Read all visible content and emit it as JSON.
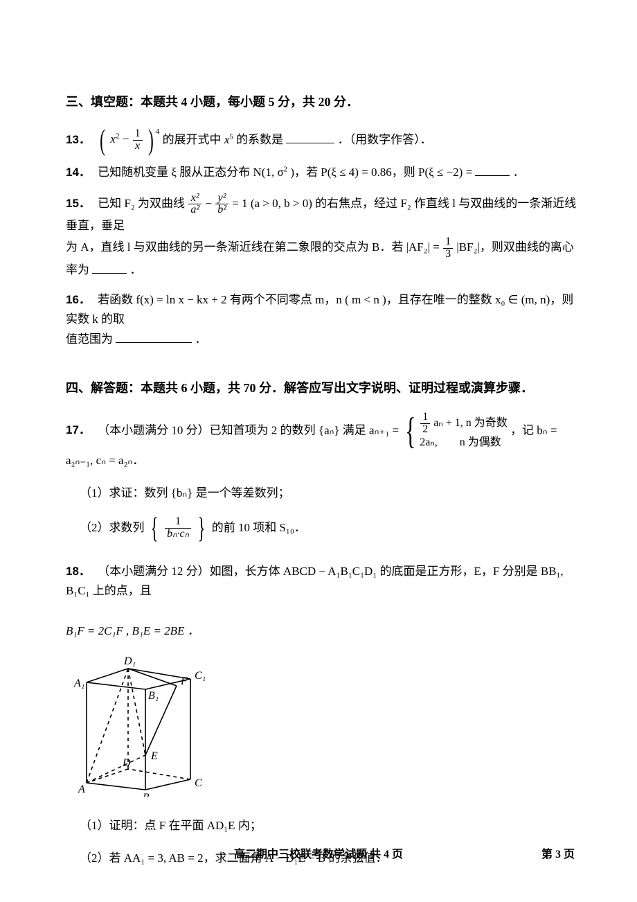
{
  "section3": {
    "title": "三、填空题：本题共 4 小题，每小题 5 分，共 20 分．",
    "q13": {
      "num": "13．",
      "pre": "",
      "exp_sup": "4",
      "mid1": " 的展开式中 ",
      "x5": "x",
      "x5_sup": "5",
      "mid2": " 的系数是",
      "tail": "．（用数字作答）．"
    },
    "q14": {
      "num": "14．",
      "text_a": "已知随机变量 ξ 服从正态分布 N(1, σ",
      "sq": "2",
      "text_b": ")，若 P(ξ ≤ 4) = 0.86，则 P(ξ ≤ −2) = ",
      "tail": "．"
    },
    "q15": {
      "num": "15．",
      "text_a": "已知 F₂ 为双曲线 ",
      "hy_a": "x²",
      "hy_b": "a²",
      "minus": " − ",
      "hy_c": "y²",
      "hy_d": "b²",
      "text_b": " = 1 (a > 0, b > 0) 的右焦点，经过 F₂ 作直线 l 与双曲线的一条渐近线垂直，垂足",
      "line2_a": "为 A，直线 l 与双曲线的另一条渐近线在第二象限的交点为 B．若 |AF₂| = ",
      "frac_num": "1",
      "frac_den": "3",
      "line2_b": "|BF₂|，则双曲线的离心率为",
      "tail": "．"
    },
    "q16": {
      "num": "16．",
      "text_a": "若函数 f(x) = ln x − kx + 2 有两个不同零点 m，n ( m < n )，且存在唯一的整数 x₀ ∈ (m, n)，则实数 k 的取",
      "line2": "值范围为",
      "tail": "．"
    }
  },
  "section4": {
    "title": "四、解答题：本题共 6 小题，共 70 分．解答应写出文字说明、证明过程或演算步骤．",
    "q17": {
      "num": "17．",
      "lead": "（本小题满分 10 分）已知首项为 2 的数列 {aₙ} 满足 aₙ₊₁ = ",
      "case1_a": "aₙ + 1, n 为奇数",
      "case1_frac_num": "1",
      "case1_frac_den": "2",
      "case2": "2aₙ,　　n 为偶数",
      "after": "，记 bₙ = a₂ₙ₋₁, cₙ = a₂ₙ．",
      "sub1": "（1）求证：数列 {bₙ} 是一个等差数列；",
      "sub2_a": "（2）求数列 ",
      "sub2_frac_num": "1",
      "sub2_frac_den": "bₙ·cₙ",
      "sub2_b": " 的前 10 项和 S₁₀．"
    },
    "q18": {
      "num": "18．",
      "lead": "（本小题满分 12 分）如图，长方体 ABCD − A₁B₁C₁D₁ 的底面是正方形，E，F 分别是 BB₁, B₁C₁ 上的点，且",
      "line2": "B₁F = 2C₁F , B₁E = 2BE ．",
      "sub1": "（1）证明：点 F 在平面 AD₁E 内；",
      "sub2": "（2）若 AA₁ = 3, AB = 2，求二面角 A − D₁E − B 的余弦值．"
    }
  },
  "footer": {
    "center": "高二期中三校联考数学试题  共 4 页",
    "right": "第 3 页"
  },
  "cube": {
    "labels": {
      "A": "A",
      "B": "B",
      "C": "C",
      "D": "D",
      "A1": "A₁",
      "B1": "B₁",
      "C1": "C₁",
      "D1": "D₁",
      "E": "E",
      "F": "F"
    },
    "stroke": "#000000",
    "stroke_width": 1.6,
    "dash": "5,5"
  }
}
